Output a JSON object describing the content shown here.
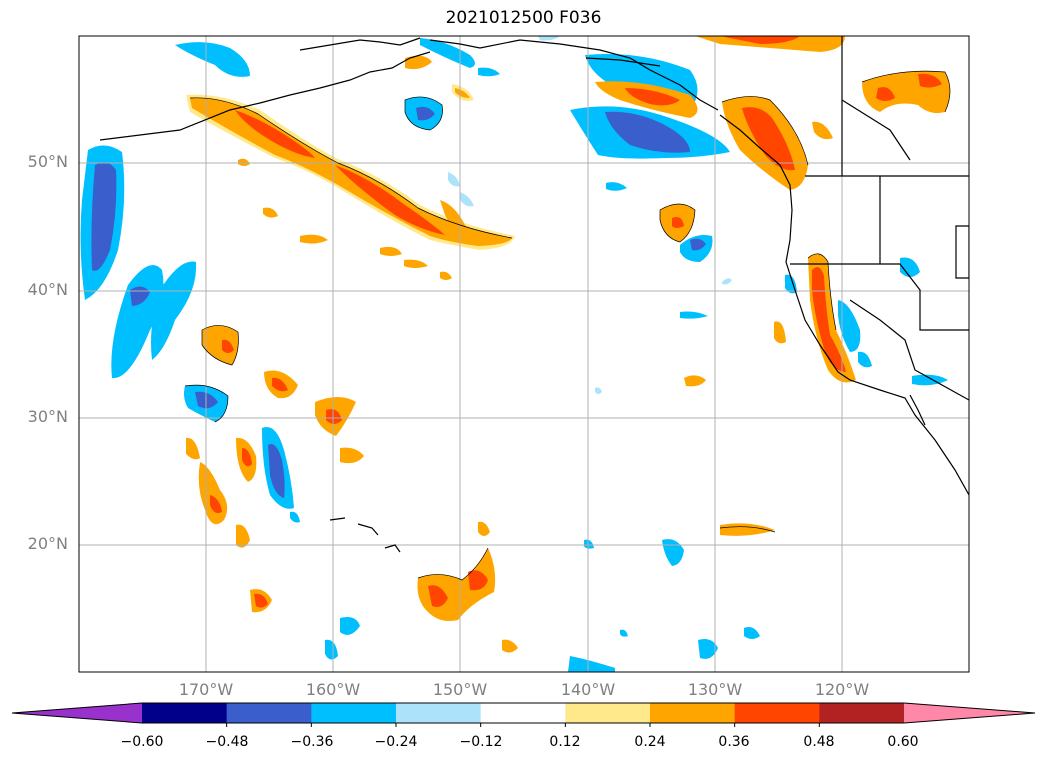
{
  "title": "2021012500 F036",
  "map": {
    "lat_labels": [
      "50°N",
      "40°N",
      "30°N",
      "20°N"
    ],
    "lon_labels": [
      "170°W",
      "160°W",
      "150°W",
      "140°W",
      "130°W",
      "120°W"
    ],
    "grid": true
  },
  "colorbar": {
    "ticks": [
      "−0.60",
      "−0.48",
      "−0.36",
      "−0.24",
      "−0.12",
      "0.12",
      "0.24",
      "0.36",
      "0.48",
      "0.60"
    ],
    "colors": [
      "#9932CC",
      "#00008B",
      "#3A5FCD",
      "#00BFFF",
      "#ADE3FA",
      "#FFFFFF",
      "#FFE98A",
      "#FFA500",
      "#FF4500",
      "#B22222",
      "#FF88A8"
    ],
    "extend": "both"
  }
}
